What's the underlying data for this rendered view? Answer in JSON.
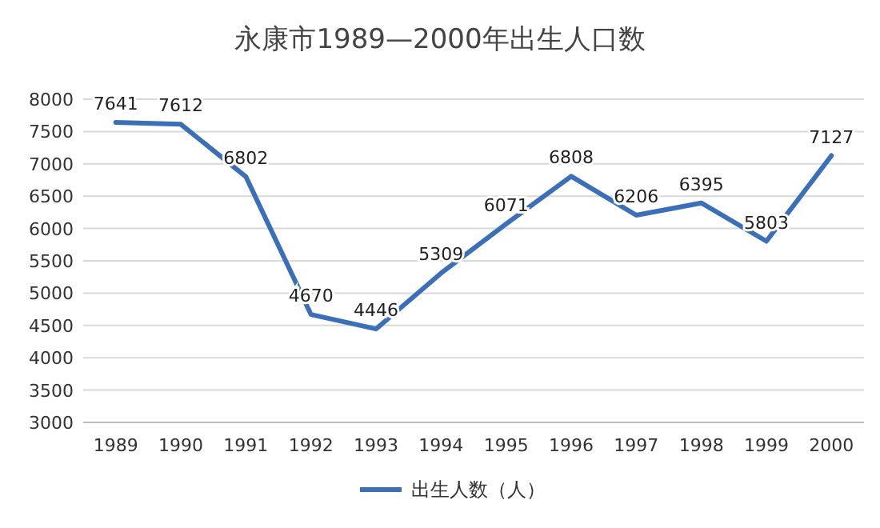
{
  "chart_data": {
    "type": "line",
    "title": "永康市1989—2000年出生人口数",
    "categories": [
      "1989",
      "1990",
      "1991",
      "1992",
      "1993",
      "1994",
      "1995",
      "1996",
      "1997",
      "1998",
      "1999",
      "2000"
    ],
    "series": [
      {
        "name": "出生人数（人）",
        "color": "#3b70b8",
        "values": [
          7641,
          7612,
          6802,
          4670,
          4446,
          5309,
          6071,
          6808,
          6206,
          6395,
          5803,
          7127
        ]
      }
    ],
    "ylim": [
      3000,
      8000
    ],
    "yticks": [
      3000,
      3500,
      4000,
      4500,
      5000,
      5500,
      6000,
      6500,
      7000,
      7500,
      8000
    ],
    "grid": "y",
    "legend": "bottom",
    "data_labels": true,
    "line_style": "solid"
  }
}
